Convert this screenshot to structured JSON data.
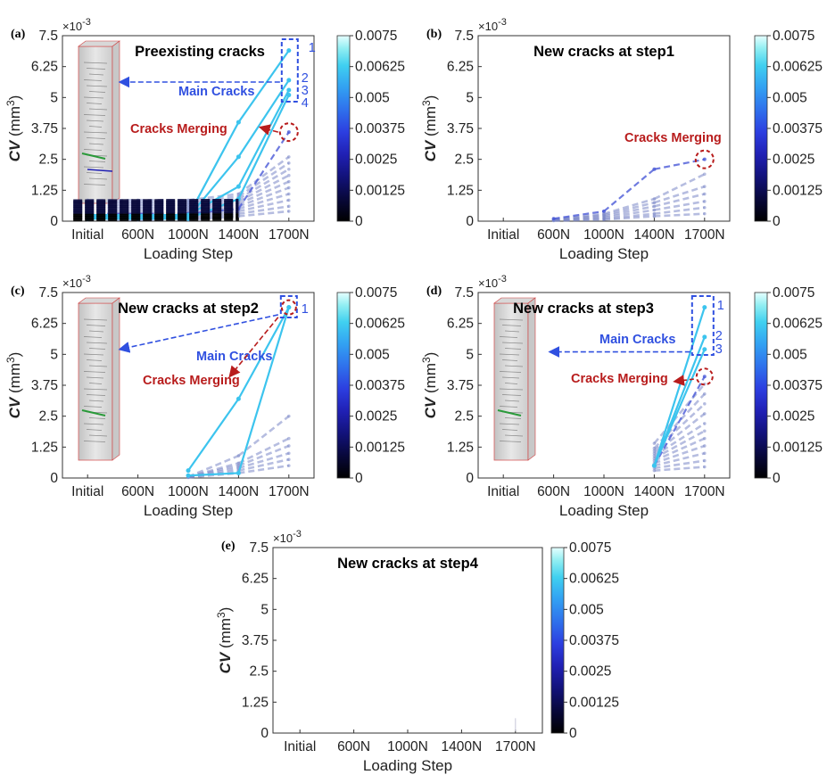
{
  "colors": {
    "colormap": [
      "#000000",
      "#08083a",
      "#12127a",
      "#2020b4",
      "#2c3ee0",
      "#2f70ec",
      "#32a0f2",
      "#40d0f0",
      "#90eef2",
      "#e6ffff"
    ],
    "annotation_blue": "#3050e0",
    "annotation_red": "#b81c1c"
  },
  "panels": [
    {
      "letter": "(a)",
      "title": "Preexisting cracks",
      "ylabel_main": "CV",
      "ylabel_unit": " (mm",
      "ylabel_exp": "3",
      "ylabel_close": ")",
      "xlabel": "Loading Step",
      "multiplier": "×10",
      "multiplier_exp": "-3",
      "xticks": [
        "Initial",
        "600N",
        "1000N",
        "1400N",
        "1700N"
      ],
      "yticks": [
        "0",
        "1.25",
        "2.5",
        "3.75",
        "5",
        "6.25",
        "7.5"
      ],
      "cbticks": [
        "0",
        "0.00125",
        "0.0025",
        "0.00375",
        "0.005",
        "0.00625",
        "0.0075"
      ],
      "labels": {
        "main": "Main Cracks",
        "merge": "Cracks Merging",
        "n1": "1",
        "n2": "2",
        "n3": "3",
        "n4": "4"
      }
    },
    {
      "letter": "(b)",
      "title": "New cracks at step1",
      "ylabel_main": "CV",
      "ylabel_unit": " (mm",
      "ylabel_exp": "3",
      "ylabel_close": ")",
      "xlabel": "Loading Step",
      "multiplier": "×10",
      "multiplier_exp": "-3",
      "xticks": [
        "Initial",
        "600N",
        "1000N",
        "1400N",
        "1700N"
      ],
      "yticks": [
        "0",
        "1.25",
        "2.5",
        "3.75",
        "5",
        "6.25",
        "7.5"
      ],
      "cbticks": [
        "0",
        "0.00125",
        "0.0025",
        "0.00375",
        "0.005",
        "0.00625",
        "0.0075"
      ],
      "labels": {
        "merge": "Cracks Merging"
      }
    },
    {
      "letter": "(c)",
      "title": "New cracks at step2",
      "ylabel_main": "CV",
      "ylabel_unit": " (mm",
      "ylabel_exp": "3",
      "ylabel_close": ")",
      "xlabel": "Loading Step",
      "multiplier": "×10",
      "multiplier_exp": "-3",
      "xticks": [
        "Initial",
        "600N",
        "1000N",
        "1400N",
        "1700N"
      ],
      "yticks": [
        "0",
        "1.25",
        "2.5",
        "3.75",
        "5",
        "6.25",
        "7.5"
      ],
      "cbticks": [
        "0",
        "0.00125",
        "0.0025",
        "0.00375",
        "0.005",
        "0.00625",
        "0.0075"
      ],
      "labels": {
        "main": "Main Cracks",
        "merge": "Cracks Merging",
        "n1": "1"
      }
    },
    {
      "letter": "(d)",
      "title": "New cracks at step3",
      "ylabel_main": "CV",
      "ylabel_unit": " (mm",
      "ylabel_exp": "3",
      "ylabel_close": ")",
      "xlabel": "Loading Step",
      "multiplier": "×10",
      "multiplier_exp": "-3",
      "xticks": [
        "Initial",
        "600N",
        "1000N",
        "1400N",
        "1700N"
      ],
      "yticks": [
        "0",
        "1.25",
        "2.5",
        "3.75",
        "5",
        "6.25",
        "7.5"
      ],
      "cbticks": [
        "0",
        "0.00125",
        "0.0025",
        "0.00375",
        "0.005",
        "0.00625",
        "0.0075"
      ],
      "labels": {
        "main": "Main Cracks",
        "merge": "Cracks Merging",
        "n1": "1",
        "n2": "2",
        "n3": "3"
      }
    },
    {
      "letter": "(e)",
      "title": "New cracks at step4",
      "ylabel_main": "CV",
      "ylabel_unit": " (mm",
      "ylabel_exp": "3",
      "ylabel_close": ")",
      "xlabel": "Loading Step",
      "multiplier": "×10",
      "multiplier_exp": "-3",
      "xticks": [
        "Initial",
        "600N",
        "1000N",
        "1400N",
        "1700N"
      ],
      "yticks": [
        "0",
        "1.25",
        "2.5",
        "3.75",
        "5",
        "6.25",
        "7.5"
      ],
      "cbticks": [
        "0",
        "0.00125",
        "0.0025",
        "0.00375",
        "0.005",
        "0.00625",
        "0.0075"
      ],
      "labels": {}
    }
  ],
  "chart_data": [
    {
      "panel": "a",
      "type": "line",
      "title": "Preexisting cracks",
      "xlabel": "Loading Step",
      "ylabel": "CV (mm3)",
      "y_multiplier": "1e-3",
      "categories": [
        "Initial",
        "600N",
        "1000N",
        "1400N",
        "1700N"
      ],
      "ylim": [
        0,
        7.5
      ],
      "colorbar": {
        "min": 0,
        "max": 0.0075
      },
      "main_cracks": [
        {
          "name": "1",
          "values": [
            0.2,
            0.2,
            0.2,
            4.0,
            6.9
          ]
        },
        {
          "name": "2",
          "values": [
            0.15,
            0.15,
            0.15,
            2.6,
            5.7
          ]
        },
        {
          "name": "3",
          "values": [
            0.25,
            0.25,
            0.25,
            1.4,
            5.3
          ]
        },
        {
          "name": "4",
          "values": [
            0.1,
            0.1,
            0.1,
            0.9,
            5.1
          ]
        }
      ],
      "merging_crack": {
        "values": [
          0.3,
          0.3,
          0.3,
          0.5,
          3.6
        ]
      },
      "other_cracks": [
        [
          0.85,
          0.85,
          0.85,
          1.1,
          2.6
        ],
        [
          0.75,
          0.75,
          0.75,
          1.0,
          2.35
        ],
        [
          0.65,
          0.65,
          0.65,
          0.9,
          2.1
        ],
        [
          0.55,
          0.55,
          0.55,
          0.8,
          1.85
        ],
        [
          0.45,
          0.45,
          0.45,
          0.7,
          1.6
        ],
        [
          0.35,
          0.35,
          0.35,
          0.6,
          1.35
        ],
        [
          0.28,
          0.28,
          0.28,
          0.5,
          1.1
        ],
        [
          0.2,
          0.2,
          0.2,
          0.4,
          0.85
        ],
        [
          0.12,
          0.12,
          0.12,
          0.3,
          0.6
        ],
        [
          0.05,
          0.05,
          0.05,
          0.2,
          0.4
        ]
      ]
    },
    {
      "panel": "b",
      "type": "line",
      "title": "New cracks at step1",
      "xlabel": "Loading Step",
      "ylabel": "CV (mm3)",
      "y_multiplier": "1e-3",
      "categories": [
        "Initial",
        "600N",
        "1000N",
        "1400N",
        "1700N"
      ],
      "ylim": [
        0,
        7.5
      ],
      "colorbar": {
        "min": 0,
        "max": 0.0075
      },
      "merging_crack": {
        "values": [
          null,
          0.1,
          0.4,
          2.1,
          2.5
        ]
      },
      "other_cracks": [
        [
          null,
          0.08,
          0.3,
          0.9,
          1.9
        ],
        [
          null,
          0.06,
          0.25,
          0.75,
          1.4
        ],
        [
          null,
          0.05,
          0.2,
          0.6,
          1.1
        ],
        [
          null,
          0.04,
          0.15,
          0.45,
          0.8
        ],
        [
          null,
          0.03,
          0.1,
          0.3,
          0.55
        ],
        [
          null,
          0.02,
          0.06,
          0.2,
          0.3
        ]
      ]
    },
    {
      "panel": "c",
      "type": "line",
      "title": "New cracks at step2",
      "xlabel": "Loading Step",
      "ylabel": "CV (mm3)",
      "y_multiplier": "1e-3",
      "categories": [
        "Initial",
        "600N",
        "1000N",
        "1400N",
        "1700N"
      ],
      "ylim": [
        0,
        7.5
      ],
      "colorbar": {
        "min": 0,
        "max": 0.0075
      },
      "main_cracks": [
        {
          "name": "1",
          "values": [
            null,
            null,
            0.3,
            3.2,
            6.9
          ]
        },
        {
          "name": "",
          "values": [
            null,
            null,
            0.1,
            0.2,
            6.9
          ]
        }
      ],
      "other_cracks": [
        [
          null,
          null,
          0.05,
          0.9,
          2.5
        ],
        [
          null,
          null,
          0.05,
          0.6,
          1.6
        ],
        [
          null,
          null,
          0.05,
          0.5,
          1.3
        ],
        [
          null,
          null,
          0.04,
          0.4,
          1.0
        ],
        [
          null,
          null,
          0.03,
          0.3,
          0.75
        ],
        [
          null,
          null,
          0.02,
          0.2,
          0.5
        ]
      ]
    },
    {
      "panel": "d",
      "type": "line",
      "title": "New cracks at step3",
      "xlabel": "Loading Step",
      "ylabel": "CV (mm3)",
      "y_multiplier": "1e-3",
      "categories": [
        "Initial",
        "600N",
        "1000N",
        "1400N",
        "1700N"
      ],
      "ylim": [
        0,
        7.5
      ],
      "colorbar": {
        "min": 0,
        "max": 0.0075
      },
      "main_cracks": [
        {
          "name": "1",
          "values": [
            null,
            null,
            null,
            0.5,
            6.9
          ]
        },
        {
          "name": "2",
          "values": [
            null,
            null,
            null,
            0.5,
            5.7
          ]
        },
        {
          "name": "3",
          "values": [
            null,
            null,
            null,
            0.5,
            5.2
          ]
        }
      ],
      "merging_crack": {
        "values": [
          null,
          null,
          null,
          0.5,
          4.1
        ]
      },
      "other_cracks": [
        [
          null,
          null,
          null,
          1.4,
          3.8
        ],
        [
          null,
          null,
          null,
          1.2,
          3.4
        ],
        [
          null,
          null,
          null,
          1.1,
          3.0
        ],
        [
          null,
          null,
          null,
          1.0,
          2.6
        ],
        [
          null,
          null,
          null,
          0.9,
          2.2
        ],
        [
          null,
          null,
          null,
          0.8,
          1.9
        ],
        [
          null,
          null,
          null,
          0.7,
          1.6
        ],
        [
          null,
          null,
          null,
          0.6,
          1.3
        ],
        [
          null,
          null,
          null,
          0.5,
          1.0
        ],
        [
          null,
          null,
          null,
          0.4,
          0.7
        ],
        [
          null,
          null,
          null,
          0.3,
          0.45
        ]
      ]
    },
    {
      "panel": "e",
      "type": "line",
      "title": "New cracks at step4",
      "xlabel": "Loading Step",
      "ylabel": "CV (mm3)",
      "y_multiplier": "1e-3",
      "categories": [
        "Initial",
        "600N",
        "1000N",
        "1400N",
        "1700N"
      ],
      "ylim": [
        0,
        7.5
      ],
      "colorbar": {
        "min": 0,
        "max": 0.0075
      },
      "points": [
        {
          "x": "1700N",
          "y": 0.6
        }
      ]
    }
  ]
}
